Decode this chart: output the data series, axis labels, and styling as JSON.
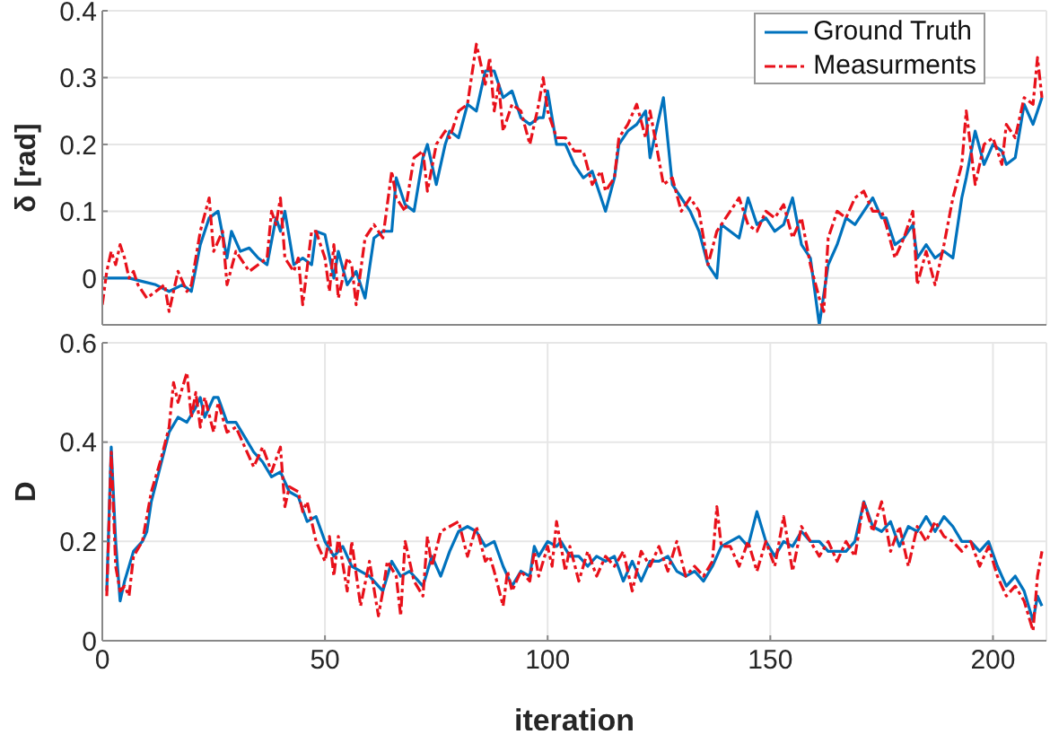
{
  "chart_data": [
    {
      "type": "line",
      "ylabel": "δ [rad]",
      "xlim": [
        0,
        212
      ],
      "xticks": [
        0,
        50,
        100,
        150,
        200
      ],
      "ylim": [
        -0.07,
        0.4
      ],
      "yticks": [
        0,
        0.1,
        0.2,
        0.3,
        0.4
      ],
      "grid": true,
      "legend": "top right",
      "tick_labels": "y",
      "series": [
        {
          "name": "Ground Truth",
          "color": "#0072bd",
          "line_style": "solid",
          "x": [
            0,
            3,
            6,
            9,
            12,
            15,
            18,
            20,
            22,
            24,
            26,
            28,
            29,
            31,
            33,
            35,
            37,
            39,
            40,
            41,
            43,
            45,
            47,
            48,
            50,
            52,
            53,
            55,
            57,
            59,
            61,
            63,
            65,
            66,
            68,
            70,
            72,
            73,
            75,
            77,
            78,
            80,
            82,
            84,
            86,
            88,
            90,
            92,
            94,
            96,
            98,
            99,
            100,
            102,
            104,
            106,
            108,
            110,
            112,
            113,
            115,
            116,
            118,
            120,
            122,
            123,
            126,
            128,
            130,
            132,
            134,
            136,
            138,
            139,
            141,
            143,
            145,
            147,
            149,
            151,
            153,
            155,
            157,
            159,
            161,
            163,
            165,
            167,
            169,
            171,
            173,
            175,
            176,
            178,
            180,
            182,
            183,
            185,
            187,
            189,
            191,
            193,
            194,
            196,
            198,
            200,
            202,
            203,
            205,
            207,
            209,
            210,
            211
          ],
          "values": [
            0,
            0,
            0,
            -0.005,
            -0.01,
            -0.02,
            -0.01,
            -0.02,
            0.05,
            0.09,
            0.1,
            0.03,
            0.07,
            0.04,
            0.045,
            0.03,
            0.02,
            0.09,
            0.07,
            0.1,
            0.02,
            0.03,
            0.02,
            0.07,
            0.065,
            0,
            0.04,
            -0.01,
            0.01,
            -0.03,
            0.06,
            0.07,
            0.07,
            0.15,
            0.11,
            0.1,
            0.18,
            0.2,
            0.14,
            0.2,
            0.22,
            0.21,
            0.26,
            0.25,
            0.31,
            0.31,
            0.27,
            0.28,
            0.24,
            0.23,
            0.24,
            0.24,
            0.28,
            0.2,
            0.2,
            0.17,
            0.15,
            0.16,
            0.12,
            0.1,
            0.15,
            0.2,
            0.22,
            0.23,
            0.25,
            0.18,
            0.27,
            0.14,
            0.12,
            0.1,
            0.07,
            0.02,
            0,
            0.08,
            0.07,
            0.06,
            0.12,
            0.08,
            0.09,
            0.07,
            0.08,
            0.12,
            0.05,
            0.03,
            -0.07,
            0.02,
            0.05,
            0.09,
            0.08,
            0.1,
            0.12,
            0.09,
            0.09,
            0.05,
            0.06,
            0.08,
            0.03,
            0.05,
            0.03,
            0.04,
            0.03,
            0.12,
            0.15,
            0.22,
            0.17,
            0.2,
            0.19,
            0.17,
            0.18,
            0.26,
            0.23,
            0.25,
            0.27
          ]
        },
        {
          "name": "Measurments",
          "color": "#e8111b",
          "line_style": "dashed",
          "x": [
            0,
            1,
            2,
            3,
            4,
            5,
            6,
            7,
            8,
            10,
            12,
            14,
            15,
            17,
            19,
            20,
            22,
            24,
            25,
            27,
            28,
            30,
            32,
            33,
            35,
            37,
            38,
            39,
            40,
            41,
            43,
            44,
            45,
            47,
            48,
            50,
            51,
            52,
            53,
            55,
            56,
            57,
            59,
            61,
            63,
            65,
            66,
            68,
            70,
            72,
            73,
            75,
            77,
            78,
            80,
            82,
            84,
            86,
            87,
            88,
            89,
            90,
            92,
            94,
            96,
            98,
            99,
            100,
            102,
            104,
            106,
            108,
            110,
            112,
            113,
            115,
            116,
            118,
            120,
            122,
            123,
            126,
            128,
            130,
            132,
            134,
            136,
            138,
            139,
            141,
            143,
            145,
            147,
            149,
            151,
            153,
            155,
            157,
            159,
            161,
            162,
            163,
            165,
            167,
            169,
            171,
            173,
            175,
            176,
            178,
            180,
            182,
            183,
            185,
            187,
            189,
            191,
            193,
            194,
            196,
            198,
            200,
            202,
            203,
            205,
            207,
            209,
            210,
            211
          ],
          "values": [
            -0.04,
            0.01,
            0.04,
            0.02,
            0.05,
            0.03,
            0,
            0.01,
            -0.01,
            -0.03,
            -0.02,
            -0.01,
            -0.05,
            0.01,
            -0.02,
            -0.01,
            0.07,
            0.12,
            0.04,
            0.07,
            -0.01,
            0.04,
            0.02,
            0.01,
            0.02,
            0.03,
            0.1,
            0.08,
            0.12,
            0.03,
            0.01,
            0.03,
            -0.04,
            0.07,
            0.07,
            0.03,
            -0.02,
            0.05,
            -0.03,
            0.03,
            0.02,
            -0.04,
            0.06,
            0.08,
            0.06,
            0.16,
            0.12,
            0.1,
            0.18,
            0.19,
            0.13,
            0.2,
            0.22,
            0.21,
            0.25,
            0.26,
            0.35,
            0.29,
            0.33,
            0.25,
            0.29,
            0.22,
            0.26,
            0.25,
            0.2,
            0.26,
            0.3,
            0.25,
            0.21,
            0.21,
            0.19,
            0.19,
            0.14,
            0.16,
            0.13,
            0.15,
            0.21,
            0.23,
            0.26,
            0.21,
            0.25,
            0.14,
            0.15,
            0.1,
            0.12,
            0.1,
            0.02,
            0.07,
            0.08,
            0.1,
            0.12,
            0.08,
            0.07,
            0.1,
            0.09,
            0.11,
            0.06,
            0.09,
            0.02,
            -0.03,
            -0.05,
            0.06,
            0.1,
            0.09,
            0.12,
            0.13,
            0.1,
            0.1,
            0.08,
            0.03,
            0.06,
            0.1,
            -0.01,
            0.04,
            -0.01,
            0.05,
            0.12,
            0.17,
            0.25,
            0.14,
            0.2,
            0.21,
            0.17,
            0.23,
            0.21,
            0.27,
            0.26,
            0.33,
            0.27
          ]
        }
      ]
    },
    {
      "type": "line",
      "xlabel": "iteration",
      "ylabel": "D",
      "xlim": [
        0,
        212
      ],
      "xticks": [
        0,
        50,
        100,
        150,
        200
      ],
      "ylim": [
        0,
        0.6
      ],
      "yticks": [
        0,
        0.2,
        0.4,
        0.6
      ],
      "grid": true,
      "series": [
        {
          "color": "#0072bd",
          "line_style": "solid",
          "x": [
            1,
            2,
            3,
            4,
            5,
            7,
            9,
            10,
            11,
            13,
            15,
            17,
            19,
            21,
            22,
            23,
            25,
            26,
            28,
            30,
            32,
            34,
            36,
            38,
            40,
            42,
            44,
            46,
            48,
            50,
            52,
            54,
            56,
            58,
            60,
            62,
            63,
            65,
            67,
            69,
            71,
            72,
            74,
            76,
            78,
            80,
            82,
            84,
            86,
            88,
            90,
            92,
            94,
            96,
            97,
            98,
            100,
            102,
            103,
            105,
            107,
            109,
            111,
            113,
            115,
            117,
            119,
            121,
            123,
            125,
            127,
            129,
            131,
            133,
            135,
            137,
            139,
            141,
            143,
            145,
            147,
            149,
            151,
            153,
            155,
            157,
            159,
            161,
            163,
            165,
            167,
            169,
            171,
            173,
            175,
            177,
            179,
            181,
            183,
            185,
            187,
            189,
            191,
            193,
            195,
            197,
            199,
            201,
            203,
            205,
            207,
            209,
            210,
            211
          ],
          "values": [
            0.1,
            0.39,
            0.2,
            0.08,
            0.12,
            0.18,
            0.2,
            0.22,
            0.28,
            0.35,
            0.42,
            0.45,
            0.44,
            0.47,
            0.49,
            0.45,
            0.49,
            0.49,
            0.44,
            0.44,
            0.41,
            0.38,
            0.36,
            0.33,
            0.34,
            0.3,
            0.29,
            0.24,
            0.25,
            0.2,
            0.17,
            0.19,
            0.15,
            0.14,
            0.13,
            0.11,
            0.1,
            0.16,
            0.13,
            0.14,
            0.12,
            0.11,
            0.17,
            0.13,
            0.18,
            0.22,
            0.23,
            0.22,
            0.19,
            0.2,
            0.15,
            0.11,
            0.14,
            0.13,
            0.19,
            0.17,
            0.2,
            0.19,
            0.2,
            0.17,
            0.17,
            0.15,
            0.17,
            0.16,
            0.17,
            0.12,
            0.16,
            0.12,
            0.16,
            0.16,
            0.17,
            0.14,
            0.13,
            0.14,
            0.12,
            0.15,
            0.19,
            0.2,
            0.21,
            0.19,
            0.26,
            0.2,
            0.17,
            0.2,
            0.19,
            0.22,
            0.2,
            0.2,
            0.18,
            0.18,
            0.18,
            0.2,
            0.28,
            0.23,
            0.22,
            0.24,
            0.19,
            0.23,
            0.22,
            0.25,
            0.22,
            0.25,
            0.23,
            0.2,
            0.2,
            0.18,
            0.2,
            0.15,
            0.11,
            0.13,
            0.1,
            0.04,
            0.09,
            0.07
          ]
        },
        {
          "color": "#e8111b",
          "line_style": "dashed",
          "x": [
            1,
            2,
            3,
            4,
            5,
            6,
            7,
            9,
            10,
            11,
            13,
            15,
            16,
            17,
            19,
            20,
            21,
            22,
            23,
            25,
            26,
            28,
            30,
            32,
            34,
            36,
            38,
            40,
            41,
            42,
            44,
            45,
            46,
            48,
            50,
            51,
            52,
            53,
            55,
            56,
            58,
            60,
            62,
            63,
            64,
            66,
            67,
            68,
            70,
            72,
            73,
            74,
            76,
            78,
            80,
            82,
            84,
            86,
            87,
            88,
            90,
            91,
            92,
            94,
            96,
            97,
            98,
            100,
            101,
            102,
            104,
            105,
            107,
            109,
            111,
            113,
            115,
            117,
            119,
            121,
            123,
            125,
            127,
            129,
            131,
            133,
            135,
            137,
            138,
            139,
            141,
            143,
            145,
            147,
            149,
            151,
            153,
            155,
            157,
            159,
            161,
            163,
            165,
            167,
            169,
            171,
            173,
            175,
            177,
            179,
            181,
            183,
            185,
            187,
            189,
            191,
            193,
            195,
            197,
            199,
            201,
            203,
            205,
            207,
            209,
            210,
            211
          ],
          "values": [
            0.09,
            0.38,
            0.15,
            0.1,
            0.11,
            0.09,
            0.17,
            0.2,
            0.25,
            0.3,
            0.36,
            0.43,
            0.52,
            0.48,
            0.54,
            0.45,
            0.5,
            0.43,
            0.49,
            0.42,
            0.48,
            0.42,
            0.43,
            0.39,
            0.35,
            0.39,
            0.34,
            0.39,
            0.27,
            0.31,
            0.3,
            0.26,
            0.28,
            0.2,
            0.16,
            0.21,
            0.13,
            0.21,
            0.1,
            0.2,
            0.07,
            0.16,
            0.05,
            0.1,
            0.16,
            0.13,
            0.05,
            0.2,
            0.12,
            0.09,
            0.21,
            0.15,
            0.22,
            0.23,
            0.24,
            0.17,
            0.23,
            0.16,
            0.17,
            0.14,
            0.07,
            0.14,
            0.1,
            0.14,
            0.12,
            0.18,
            0.13,
            0.19,
            0.15,
            0.24,
            0.14,
            0.19,
            0.12,
            0.18,
            0.13,
            0.17,
            0.15,
            0.18,
            0.1,
            0.18,
            0.15,
            0.19,
            0.14,
            0.2,
            0.13,
            0.15,
            0.13,
            0.16,
            0.27,
            0.19,
            0.19,
            0.15,
            0.2,
            0.14,
            0.2,
            0.15,
            0.25,
            0.14,
            0.23,
            0.2,
            0.17,
            0.2,
            0.16,
            0.2,
            0.17,
            0.28,
            0.22,
            0.28,
            0.18,
            0.23,
            0.15,
            0.23,
            0.2,
            0.24,
            0.21,
            0.2,
            0.18,
            0.2,
            0.15,
            0.19,
            0.13,
            0.09,
            0.11,
            0.08,
            0.02,
            0.13,
            0.18
          ]
        }
      ]
    }
  ]
}
